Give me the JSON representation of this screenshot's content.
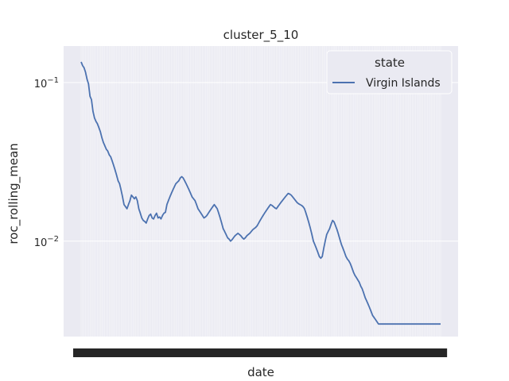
{
  "chart_data": {
    "type": "line",
    "title": "cluster_5_10",
    "xlabel": "date",
    "ylabel": "roc_rolling_mean",
    "yscale": "log",
    "ylim": [
      0.0025,
      0.17
    ],
    "y_ticks": [
      {
        "value": 0.1,
        "base": "10",
        "exp": "−1"
      },
      {
        "value": 0.01,
        "base": "10",
        "exp": "−2"
      }
    ],
    "x_count": 244,
    "grid": true,
    "legend": {
      "title": "state",
      "placement": "top-right"
    },
    "series": [
      {
        "name": "Virgin Islands",
        "color": "#4c72b0",
        "values": [
          0.135,
          0.128,
          0.124,
          0.116,
          0.105,
          0.098,
          0.082,
          0.078,
          0.066,
          0.06,
          0.057,
          0.055,
          0.052,
          0.049,
          0.045,
          0.042,
          0.04,
          0.038,
          0.037,
          0.035,
          0.034,
          0.032,
          0.03,
          0.028,
          0.026,
          0.024,
          0.023,
          0.021,
          0.019,
          0.017,
          0.0165,
          0.016,
          0.017,
          0.018,
          0.0195,
          0.019,
          0.0185,
          0.019,
          0.018,
          0.016,
          0.015,
          0.014,
          0.0135,
          0.0133,
          0.013,
          0.0138,
          0.0145,
          0.0148,
          0.014,
          0.0138,
          0.0145,
          0.015,
          0.014,
          0.0142,
          0.0138,
          0.0145,
          0.015,
          0.0152,
          0.017,
          0.018,
          0.019,
          0.02,
          0.021,
          0.022,
          0.023,
          0.0235,
          0.024,
          0.025,
          0.0255,
          0.025,
          0.024,
          0.023,
          0.022,
          0.021,
          0.02,
          0.019,
          0.0185,
          0.018,
          0.017,
          0.016,
          0.0155,
          0.015,
          0.0145,
          0.014,
          0.0142,
          0.0145,
          0.015,
          0.0155,
          0.016,
          0.0165,
          0.017,
          0.0165,
          0.016,
          0.015,
          0.014,
          0.013,
          0.012,
          0.0115,
          0.011,
          0.0105,
          0.0103,
          0.01,
          0.0102,
          0.0105,
          0.0108,
          0.011,
          0.0112,
          0.011,
          0.0108,
          0.0105,
          0.0103,
          0.0105,
          0.0108,
          0.011,
          0.0112,
          0.0115,
          0.0118,
          0.012,
          0.0122,
          0.0125,
          0.013,
          0.0135,
          0.014,
          0.0145,
          0.015,
          0.0155,
          0.016,
          0.0165,
          0.017,
          0.0168,
          0.0165,
          0.0162,
          0.016,
          0.0165,
          0.017,
          0.0175,
          0.018,
          0.0185,
          0.019,
          0.0195,
          0.02,
          0.0198,
          0.0195,
          0.019,
          0.0185,
          0.018,
          0.0175,
          0.0172,
          0.017,
          0.0168,
          0.0165,
          0.016,
          0.015,
          0.014,
          0.013,
          0.012,
          0.011,
          0.01,
          0.0095,
          0.009,
          0.0085,
          0.008,
          0.0078,
          0.008,
          0.009,
          0.01,
          0.011,
          0.0115,
          0.012,
          0.0128,
          0.0135,
          0.0132,
          0.0125,
          0.0118,
          0.011,
          0.0102,
          0.0095,
          0.009,
          0.0085,
          0.008,
          0.0077,
          0.0075,
          0.0072,
          0.0068,
          0.0064,
          0.0061,
          0.0059,
          0.0057,
          0.0055,
          0.0052,
          0.005,
          0.0047,
          0.0044,
          0.0042,
          0.004,
          0.0038,
          0.0036,
          0.0034,
          0.0033,
          0.0032,
          0.0031,
          0.003,
          0.003,
          0.003,
          0.003,
          0.003,
          0.003,
          0.003,
          0.003,
          0.003,
          0.003,
          0.003,
          0.003,
          0.003,
          0.003,
          0.003,
          0.003,
          0.003,
          0.003,
          0.003,
          0.003,
          0.003,
          0.003,
          0.003,
          0.003,
          0.003,
          0.003,
          0.003,
          0.003,
          0.003,
          0.003,
          0.003,
          0.003,
          0.003,
          0.003,
          0.003,
          0.003,
          0.003,
          0.003,
          0.003,
          0.003,
          0.003,
          0.003,
          0.003
        ]
      }
    ],
    "background_color": "#eaeaf2",
    "grid_color": "#ffffff",
    "text_color": "#262626"
  }
}
